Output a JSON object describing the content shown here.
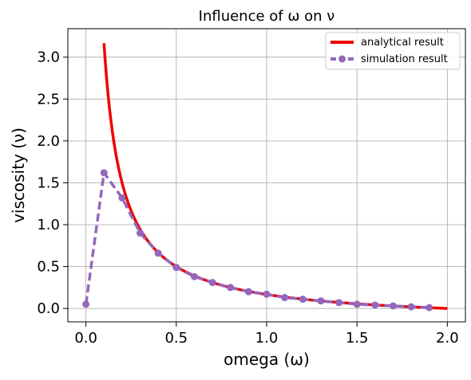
{
  "chart_data": {
    "type": "line",
    "title": "Influence of ω on ν",
    "xlabel": "omega (ω)",
    "ylabel": "viscosity (ν)",
    "xlim": [
      -0.1,
      2.1
    ],
    "ylim": [
      -0.16,
      3.34
    ],
    "grid": true,
    "legend_position": "top-right",
    "xticks": [
      0.0,
      0.5,
      1.0,
      1.5,
      2.0
    ],
    "xtick_labels": [
      "0.0",
      "0.5",
      "1.0",
      "1.5",
      "2.0"
    ],
    "yticks": [
      0.0,
      0.5,
      1.0,
      1.5,
      2.0,
      2.5,
      3.0
    ],
    "ytick_labels": [
      "0.0",
      "0.5",
      "1.0",
      "1.5",
      "2.0",
      "2.5",
      "3.0"
    ],
    "series": [
      {
        "name": "analytical result",
        "color": "#ee0000",
        "style": "solid",
        "formula": "nu = (1/omega - 0.5) / 3",
        "domain": [
          0.1,
          2.0
        ]
      },
      {
        "name": "simulation result",
        "color": "#9467bd",
        "style": "dashed",
        "marker": "circle",
        "x": [
          0.0,
          0.1,
          0.2,
          0.3,
          0.4,
          0.5,
          0.6,
          0.7,
          0.8,
          0.9,
          1.0,
          1.1,
          1.2,
          1.3,
          1.4,
          1.5,
          1.6,
          1.7,
          1.8,
          1.9
        ],
        "y": [
          0.05,
          1.62,
          1.32,
          0.9,
          0.66,
          0.49,
          0.38,
          0.31,
          0.25,
          0.2,
          0.17,
          0.13,
          0.11,
          0.09,
          0.07,
          0.05,
          0.04,
          0.03,
          0.02,
          0.01
        ]
      }
    ]
  }
}
